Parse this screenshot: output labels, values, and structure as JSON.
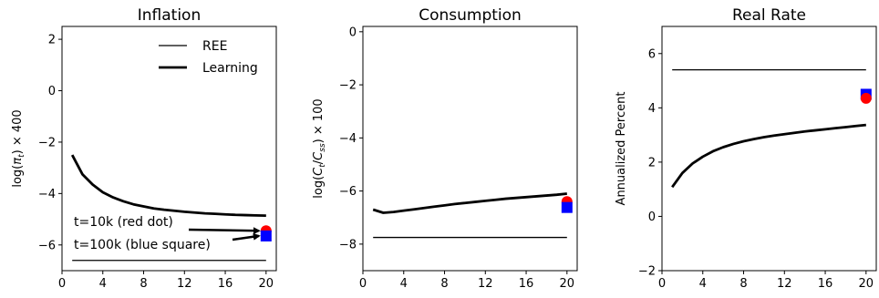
{
  "chart_data": [
    {
      "type": "line",
      "title": "Inflation",
      "ylabel": "log(π_t) × 400",
      "xlim": [
        0,
        21
      ],
      "ylim": [
        -7,
        2.5
      ],
      "xticks": [
        "0",
        "4",
        "8",
        "12",
        "16",
        "20"
      ],
      "yticks": [
        "−6",
        "−4",
        "−2",
        "0",
        "2"
      ],
      "legend": {
        "placement": "top-right",
        "entries": [
          "REE",
          "Learning"
        ]
      },
      "series": [
        {
          "name": "REE",
          "style": "thin",
          "x": [
            1,
            20
          ],
          "y": [
            -6.6,
            -6.6
          ]
        },
        {
          "name": "Learning",
          "style": "thick",
          "x": [
            1,
            2,
            3,
            4,
            5,
            6,
            7,
            8,
            9,
            10,
            11,
            12,
            13,
            14,
            15,
            16,
            17,
            18,
            19,
            20
          ],
          "y": [
            -2.5,
            -3.25,
            -3.65,
            -3.95,
            -4.15,
            -4.3,
            -4.42,
            -4.5,
            -4.58,
            -4.63,
            -4.67,
            -4.71,
            -4.74,
            -4.77,
            -4.79,
            -4.81,
            -4.83,
            -4.84,
            -4.85,
            -4.86
          ]
        }
      ],
      "markers": [
        {
          "label": "t=10k (red dot)",
          "shape": "circle",
          "color": "#ff0000",
          "x": 20,
          "y": -5.45
        },
        {
          "label": "t=100k (blue square)",
          "shape": "square",
          "color": "#0000ff",
          "x": 20,
          "y": -5.65
        }
      ]
    },
    {
      "type": "line",
      "title": "Consumption",
      "ylabel": "log(C_t/C_ss) × 100",
      "xlim": [
        0,
        21
      ],
      "ylim": [
        -9,
        0.2
      ],
      "xticks": [
        "0",
        "4",
        "8",
        "12",
        "16",
        "20"
      ],
      "yticks": [
        "−8",
        "−6",
        "−4",
        "−2",
        "0"
      ],
      "series": [
        {
          "name": "REE",
          "style": "thin",
          "x": [
            1,
            20
          ],
          "y": [
            -7.75,
            -7.75
          ]
        },
        {
          "name": "Learning",
          "style": "thick",
          "x": [
            1,
            2,
            3,
            4,
            5,
            6,
            7,
            8,
            9,
            10,
            11,
            12,
            13,
            14,
            15,
            16,
            17,
            18,
            19,
            20
          ],
          "y": [
            -6.7,
            -6.82,
            -6.79,
            -6.74,
            -6.69,
            -6.64,
            -6.59,
            -6.54,
            -6.49,
            -6.45,
            -6.41,
            -6.37,
            -6.33,
            -6.29,
            -6.26,
            -6.23,
            -6.2,
            -6.17,
            -6.14,
            -6.1
          ]
        }
      ],
      "markers": [
        {
          "shape": "circle",
          "color": "#ff0000",
          "x": 20,
          "y": -6.4
        },
        {
          "shape": "square",
          "color": "#0000ff",
          "x": 20,
          "y": -6.62
        }
      ]
    },
    {
      "type": "line",
      "title": "Real Rate",
      "ylabel": "Annualized Percent",
      "xlim": [
        0,
        21
      ],
      "ylim": [
        -2,
        7
      ],
      "xticks": [
        "0",
        "4",
        "8",
        "12",
        "16",
        "20"
      ],
      "yticks": [
        "−2",
        "0",
        "2",
        "4",
        "6"
      ],
      "series": [
        {
          "name": "REE",
          "style": "thin",
          "x": [
            1,
            20
          ],
          "y": [
            5.4,
            5.4
          ]
        },
        {
          "name": "Learning",
          "style": "thick",
          "x": [
            1,
            2,
            3,
            4,
            5,
            6,
            7,
            8,
            9,
            10,
            11,
            12,
            13,
            14,
            15,
            16,
            17,
            18,
            19,
            20
          ],
          "y": [
            1.08,
            1.6,
            1.95,
            2.2,
            2.4,
            2.55,
            2.67,
            2.77,
            2.85,
            2.92,
            2.98,
            3.03,
            3.08,
            3.13,
            3.17,
            3.21,
            3.25,
            3.29,
            3.33,
            3.37
          ]
        }
      ],
      "markers": [
        {
          "shape": "square",
          "color": "#0000ff",
          "x": 20,
          "y": 4.5
        },
        {
          "shape": "circle",
          "color": "#ff0000",
          "x": 20,
          "y": 4.35
        }
      ]
    }
  ]
}
